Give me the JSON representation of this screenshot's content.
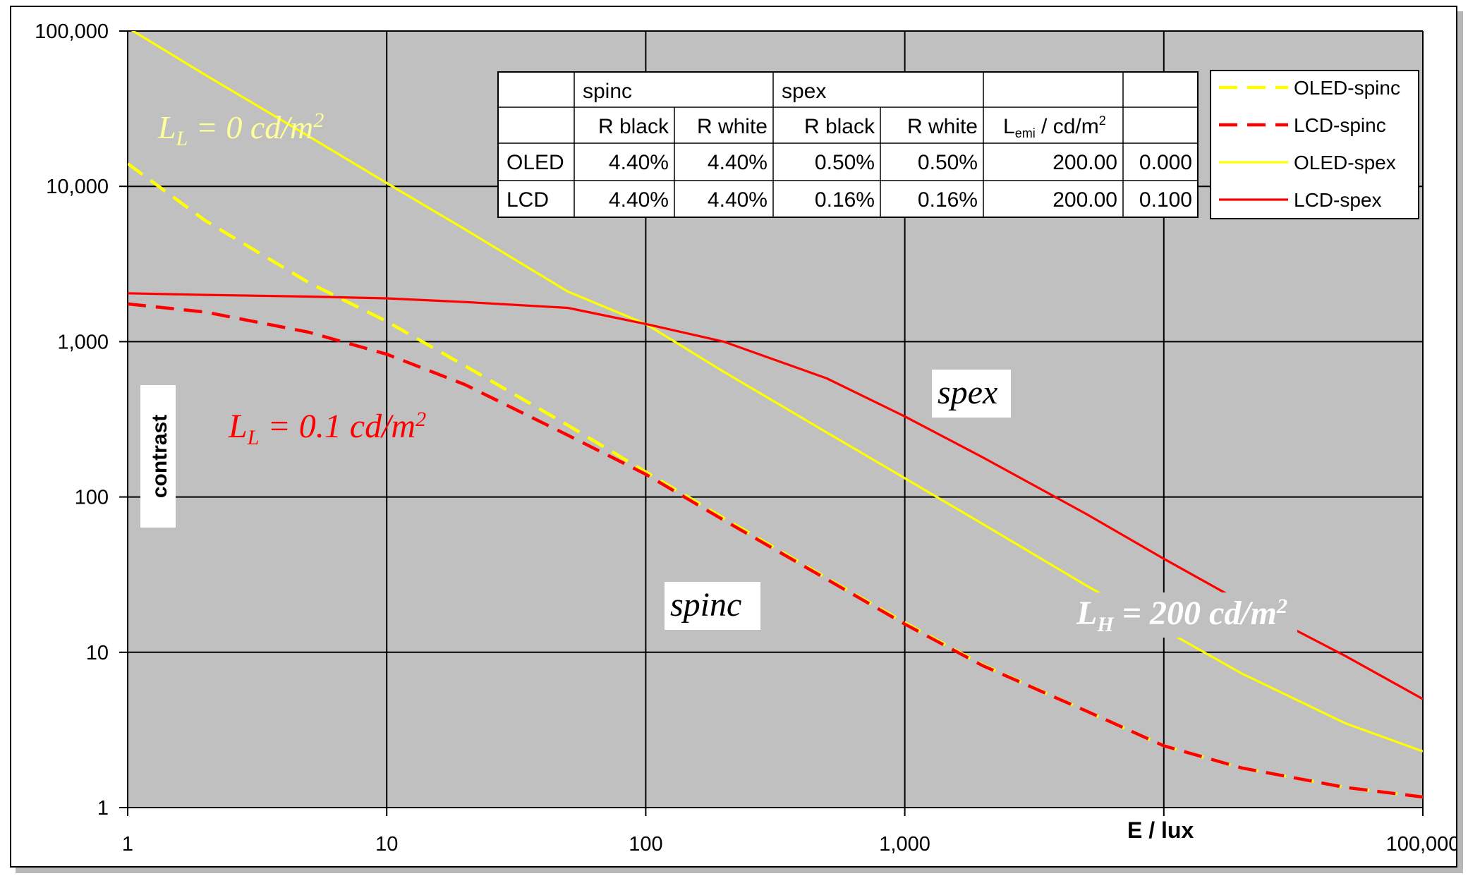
{
  "chart_data": {
    "type": "line",
    "xscale": "log",
    "yscale": "log",
    "xlim": [
      1,
      100000
    ],
    "ylim": [
      1,
      100000
    ],
    "grid": true,
    "legend_position": "top-right",
    "xlabel": "E / lux",
    "ylabel": "contrast",
    "x_ticks": [
      {
        "value": 1,
        "label": "1"
      },
      {
        "value": 10,
        "label": "10"
      },
      {
        "value": 100,
        "label": "100"
      },
      {
        "value": 1000,
        "label": "1,000"
      },
      {
        "value": 10000,
        "label": ""
      },
      {
        "value": 100000,
        "label": "100,000"
      }
    ],
    "y_ticks": [
      {
        "value": 1,
        "label": "1"
      },
      {
        "value": 10,
        "label": "10"
      },
      {
        "value": 100,
        "label": "100"
      },
      {
        "value": 1000,
        "label": "1,000"
      },
      {
        "value": 10000,
        "label": "10,000"
      },
      {
        "value": 100000,
        "label": "100,000"
      }
    ],
    "series": [
      {
        "name": "OLED-spinc",
        "color": "#ffff00",
        "dash": true,
        "x": [
          1,
          2,
          5,
          10,
          20,
          50,
          100,
          200,
          500,
          1000,
          2000,
          5000,
          10000,
          20000,
          50000,
          100000
        ],
        "y": [
          14000,
          6000,
          2400,
          1350,
          700,
          290,
          145,
          73,
          30,
          15.5,
          8.3,
          4.2,
          2.5,
          1.8,
          1.35,
          1.17
        ]
      },
      {
        "name": "LCD-spinc",
        "color": "#ff0000",
        "dash": true,
        "x": [
          1,
          2,
          5,
          10,
          20,
          50,
          100,
          200,
          500,
          1000,
          2000,
          5000,
          10000,
          20000,
          50000,
          100000
        ],
        "y": [
          1750,
          1550,
          1150,
          830,
          530,
          250,
          140,
          71,
          29.5,
          15.2,
          8.2,
          4.2,
          2.5,
          1.8,
          1.35,
          1.17
        ]
      },
      {
        "name": "OLED-spex",
        "color": "#ffff00",
        "dash": false,
        "x": [
          1,
          2,
          5,
          10,
          20,
          50,
          100,
          200,
          500,
          1000,
          2000,
          5000,
          10000,
          20000,
          50000,
          100000
        ],
        "y": [
          105000,
          52000,
          21000,
          10500,
          5300,
          2100,
          1300,
          640,
          260,
          132,
          67,
          27,
          14,
          7.3,
          3.5,
          2.3
        ]
      },
      {
        "name": "LCD-spex",
        "color": "#ff0000",
        "dash": false,
        "x": [
          1,
          2,
          5,
          10,
          20,
          50,
          100,
          200,
          500,
          1000,
          2000,
          5000,
          10000,
          20000,
          50000,
          100000
        ],
        "y": [
          2050,
          2000,
          1950,
          1900,
          1800,
          1650,
          1300,
          1000,
          580,
          330,
          180,
          78,
          40,
          21,
          9.5,
          5
        ]
      }
    ],
    "annotations": {
      "ll0": "L_L = 0 cd/m²",
      "ll01": "L_L = 0.1 cd/m²",
      "lh200": "L_H = 200 cd/m²",
      "spex": "spex",
      "spinc": "spinc"
    },
    "table": {
      "header1": [
        "",
        "spinc",
        "",
        "spex",
        "",
        "",
        ""
      ],
      "header2": [
        "",
        "R black",
        "R white",
        "R black",
        "R white",
        "L_emi / cd/m²",
        ""
      ],
      "rows": [
        [
          "OLED",
          "4.40%",
          "4.40%",
          "0.50%",
          "0.50%",
          "200.00",
          "0.000"
        ],
        [
          "LCD",
          "4.40%",
          "4.40%",
          "0.16%",
          "0.16%",
          "200.00",
          "0.100"
        ]
      ]
    }
  }
}
